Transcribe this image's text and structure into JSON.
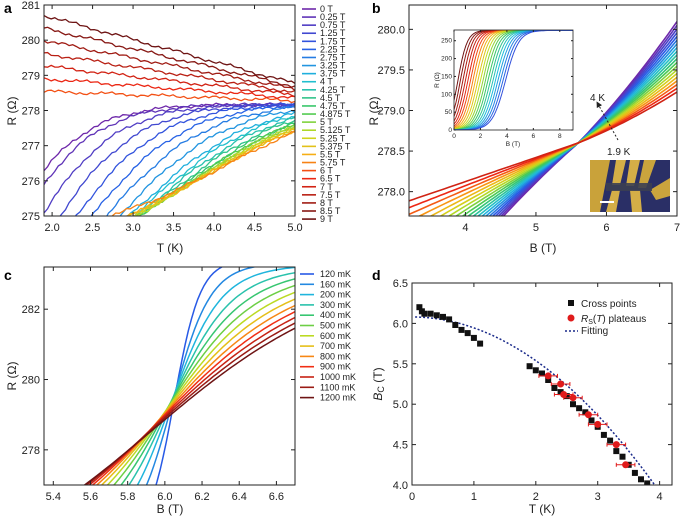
{
  "figure": {
    "panels": [
      "a",
      "b",
      "c",
      "d"
    ]
  },
  "chart_data": [
    {
      "id": "a",
      "type": "line",
      "xlabel": "T (K)",
      "ylabel": "R (Ω)",
      "xlim": [
        1.9,
        5.0
      ],
      "ylim": [
        275,
        281
      ],
      "xticks": [
        2.0,
        2.5,
        3.0,
        3.5,
        4.0,
        4.5,
        5.0
      ],
      "yticks": [
        275,
        276,
        277,
        278,
        279,
        280,
        281
      ],
      "legend_position": "right",
      "series": [
        {
          "name": "0 T",
          "field": 0
        },
        {
          "name": "0.25 T",
          "field": 0.25
        },
        {
          "name": "0.75 T",
          "field": 0.75
        },
        {
          "name": "1.25 T",
          "field": 1.25
        },
        {
          "name": "1.75 T",
          "field": 1.75
        },
        {
          "name": "2.25 T",
          "field": 2.25
        },
        {
          "name": "2.75 T",
          "field": 2.75
        },
        {
          "name": "3.25 T",
          "field": 3.25
        },
        {
          "name": "3.75 T",
          "field": 3.75
        },
        {
          "name": "4 T",
          "field": 4
        },
        {
          "name": "4.25 T",
          "field": 4.25
        },
        {
          "name": "4.5 T",
          "field": 4.5
        },
        {
          "name": "4.75 T",
          "field": 4.75
        },
        {
          "name": "4.875 T",
          "field": 4.875
        },
        {
          "name": "5 T",
          "field": 5
        },
        {
          "name": "5.125 T",
          "field": 5.125
        },
        {
          "name": "5.25 T",
          "field": 5.25
        },
        {
          "name": "5.375 T",
          "field": 5.375
        },
        {
          "name": "5.5 T",
          "field": 5.5
        },
        {
          "name": "5.75 T",
          "field": 5.75
        },
        {
          "name": "6 T",
          "field": 6
        },
        {
          "name": "6.5 T",
          "field": 6.5
        },
        {
          "name": "7 T",
          "field": 7
        },
        {
          "name": "7.5 T",
          "field": 7.5
        },
        {
          "name": "8 T",
          "field": 8
        },
        {
          "name": "8.5 T",
          "field": 8.5
        },
        {
          "name": "9 T",
          "field": 9
        }
      ]
    },
    {
      "id": "b",
      "type": "line",
      "xlabel": "B (T)",
      "ylabel": "R (Ω)",
      "xlim": [
        3.2,
        7.0
      ],
      "ylim": [
        277.7,
        280.3
      ],
      "xticks": [
        4,
        5,
        6,
        7
      ],
      "yticks": [
        278.0,
        278.5,
        279.0,
        279.5,
        280.0
      ],
      "annotations": [
        "4 K",
        "1.9 K"
      ],
      "temperature_range_K": [
        1.9,
        4.0
      ],
      "curve_count": 20,
      "crossing_point": {
        "B": 5.6,
        "R": 278.6
      },
      "inset": {
        "type": "line",
        "xlabel": "B (T)",
        "ylabel": "R (Ω)",
        "xticks": [
          0,
          2,
          4,
          6,
          8
        ],
        "yticks": [
          0,
          50,
          100,
          150,
          200,
          250
        ],
        "xlim": [
          0,
          9
        ],
        "ylim": [
          0,
          280
        ]
      }
    },
    {
      "id": "c",
      "type": "line",
      "xlabel": "B (T)",
      "ylabel": "R (Ω)",
      "xlim": [
        5.35,
        6.7
      ],
      "ylim": [
        277.0,
        283.2
      ],
      "xticks": [
        5.4,
        5.6,
        5.8,
        6.0,
        6.2,
        6.4,
        6.6
      ],
      "yticks": [
        278,
        280,
        282
      ],
      "legend_position": "top-right",
      "series": [
        {
          "name": "120 mK",
          "T_mK": 120
        },
        {
          "name": "160 mK",
          "T_mK": 160
        },
        {
          "name": "200 mK",
          "T_mK": 200
        },
        {
          "name": "300 mK",
          "T_mK": 300
        },
        {
          "name": "400 mK",
          "T_mK": 400
        },
        {
          "name": "500 mK",
          "T_mK": 500
        },
        {
          "name": "600 mK",
          "T_mK": 600
        },
        {
          "name": "700 mK",
          "T_mK": 700
        },
        {
          "name": "800 mK",
          "T_mK": 800
        },
        {
          "name": "900 mK",
          "T_mK": 900
        },
        {
          "name": "1000 mK",
          "T_mK": 1000
        },
        {
          "name": "1100 mK",
          "T_mK": 1100
        },
        {
          "name": "1200 mK",
          "T_mK": 1200
        }
      ]
    },
    {
      "id": "d",
      "type": "scatter",
      "xlabel": "T (K)",
      "ylabel": "B_C (T)",
      "xlim": [
        0,
        4.2
      ],
      "ylim": [
        4.0,
        6.5
      ],
      "xticks": [
        0,
        1,
        2,
        3,
        4
      ],
      "yticks": [
        4.0,
        4.5,
        5.0,
        5.5,
        6.0,
        6.5
      ],
      "legend_position": "top-right",
      "legend": [
        "Cross points",
        "plateaus",
        "Fitting"
      ],
      "cross_points": {
        "T": [
          0.12,
          0.16,
          0.2,
          0.3,
          0.4,
          0.5,
          0.6,
          0.7,
          0.8,
          0.9,
          1.0,
          1.1,
          1.9,
          2.0,
          2.1,
          2.2,
          2.3,
          2.4,
          2.5,
          2.6,
          2.7,
          2.8,
          2.9,
          3.0,
          3.1,
          3.2,
          3.3,
          3.4,
          3.5,
          3.6,
          3.7,
          3.8
        ],
        "Bc": [
          6.2,
          6.15,
          6.12,
          6.12,
          6.1,
          6.08,
          6.05,
          5.98,
          5.92,
          5.88,
          5.82,
          5.75,
          5.47,
          5.42,
          5.38,
          5.3,
          5.2,
          5.15,
          5.1,
          5.0,
          4.95,
          4.9,
          4.8,
          4.72,
          4.62,
          4.55,
          4.42,
          4.35,
          4.25,
          4.15,
          4.07,
          4.02
        ]
      },
      "plateaus": {
        "T": [
          2.2,
          2.4,
          2.45,
          2.6,
          2.85,
          3.0,
          3.3,
          3.45
        ],
        "Bc": [
          5.35,
          5.25,
          5.12,
          5.08,
          4.87,
          4.75,
          4.5,
          4.25
        ],
        "xerr": [
          0.15,
          0.15,
          0.15,
          0.15,
          0.15,
          0.15,
          0.15,
          0.15
        ]
      },
      "fit": {
        "B0": 6.08,
        "Tc": 3.92,
        "exponent": 2
      }
    }
  ]
}
